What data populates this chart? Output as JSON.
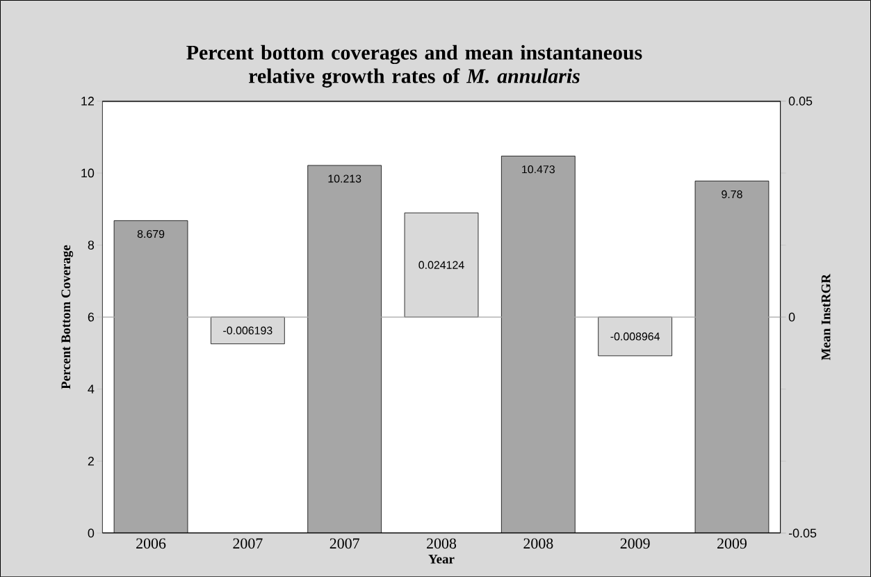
{
  "chart_data": {
    "type": "bar",
    "title": "Percent bottom coverages and mean instantaneous relative growth rates of *M. annularis*",
    "xlabel": "Year",
    "ylabel": "Percent Bottom Coverage",
    "y2label": "Mean InstRGR",
    "categories": [
      "2006",
      "2007",
      "2007",
      "2008",
      "2008",
      "2009",
      "2009"
    ],
    "series": [
      {
        "color": "#a6a6a6",
        "axis": "y",
        "values": [
          8.679,
          null,
          10.213,
          null,
          10.473,
          null,
          9.78
        ]
      },
      {
        "color": "#d9d9d9",
        "axis": "y2",
        "values": [
          null,
          -0.006193,
          null,
          0.024124,
          null,
          -0.008964,
          null
        ]
      }
    ],
    "ylim": [
      0,
      12
    ],
    "yticks": [
      0,
      2,
      4,
      6,
      8,
      10,
      12
    ],
    "y2lim": [
      -0.05,
      0.05
    ],
    "y2ticks": [
      -0.05,
      0,
      0.05
    ],
    "ref_lines": [
      {
        "axis": "y2",
        "value": 0,
        "color": "#a6a6a6"
      }
    ],
    "data_labels": true,
    "grid": false
  }
}
